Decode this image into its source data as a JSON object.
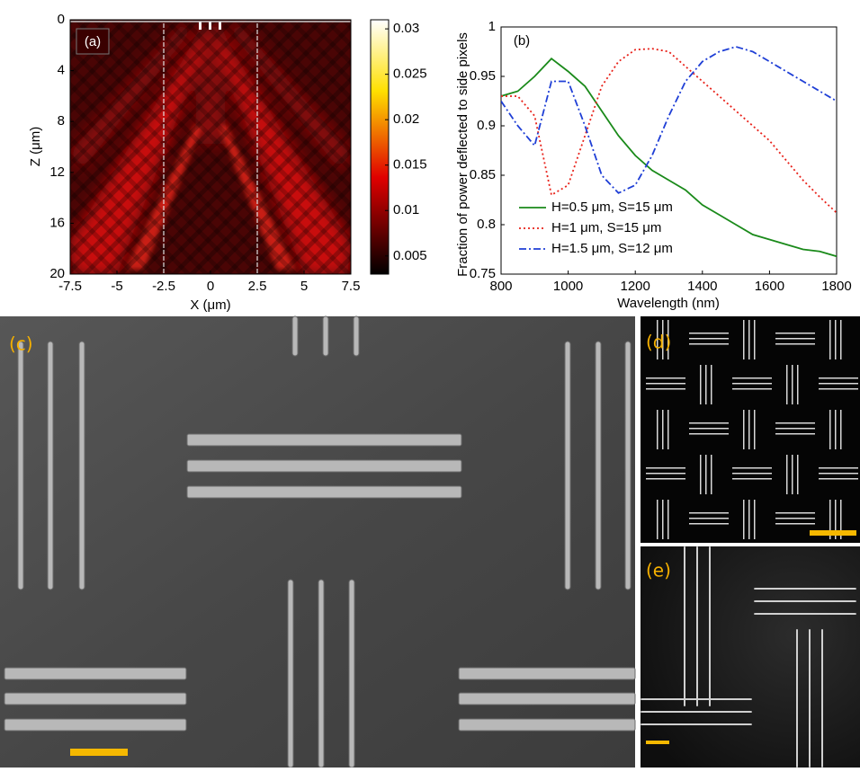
{
  "chart_data": [
    {
      "type": "heatmap",
      "panel_label": "(a)",
      "xlabel": "X (μm)",
      "ylabel": "Z (μm)",
      "xlim": [
        -7.5,
        7.5
      ],
      "xticks": [
        -7.5,
        -5,
        -2.5,
        0,
        2.5,
        5,
        7.5
      ],
      "ylim": [
        20,
        0
      ],
      "yticks": [
        0,
        4,
        8,
        12,
        16,
        20
      ],
      "guides_x": [
        -2.5,
        2.5
      ],
      "colorbar": {
        "colormap": "hot",
        "lim": [
          0.003,
          0.031
        ],
        "ticks": [
          0.005,
          0.01,
          0.015,
          0.02,
          0.025,
          0.03
        ]
      }
    },
    {
      "type": "line",
      "panel_label": "(b)",
      "xlabel": "Wavelength (nm)",
      "ylabel": "Fraction of power deflected to side pixels",
      "xlim": [
        800,
        1800
      ],
      "xticks": [
        800,
        1000,
        1200,
        1400,
        1600,
        1800
      ],
      "ylim": [
        0.75,
        1
      ],
      "yticks": [
        0.75,
        0.8,
        0.85,
        0.9,
        0.95,
        1
      ],
      "legend": "lower left",
      "x": [
        800,
        850,
        900,
        950,
        1000,
        1050,
        1100,
        1150,
        1200,
        1250,
        1300,
        1350,
        1400,
        1450,
        1500,
        1550,
        1600,
        1650,
        1700,
        1750,
        1800
      ],
      "series": [
        {
          "name": "H=0.5 μm, S=15 μm",
          "color": "#1a8a1a",
          "style": "solid",
          "values": [
            0.93,
            0.935,
            0.95,
            0.968,
            0.955,
            0.94,
            0.915,
            0.89,
            0.87,
            0.855,
            0.845,
            0.835,
            0.82,
            0.81,
            0.8,
            0.79,
            0.785,
            0.78,
            0.775,
            0.773,
            0.768
          ]
        },
        {
          "name": "H=1 μm, S=15 μm",
          "color": "#e8221a",
          "style": "dotted",
          "values": [
            0.93,
            0.93,
            0.91,
            0.83,
            0.84,
            0.89,
            0.94,
            0.965,
            0.977,
            0.978,
            0.975,
            0.96,
            0.945,
            0.93,
            0.915,
            0.9,
            0.885,
            0.865,
            0.845,
            0.828,
            0.812
          ]
        },
        {
          "name": "H=1.5 μm, S=12 μm",
          "color": "#1f3fd6",
          "style": "dashdot",
          "values": [
            0.925,
            0.9,
            0.88,
            0.945,
            0.945,
            0.9,
            0.85,
            0.832,
            0.84,
            0.87,
            0.91,
            0.945,
            0.965,
            0.975,
            0.98,
            0.975,
            0.965,
            0.955,
            0.945,
            0.935,
            0.925
          ]
        }
      ]
    }
  ],
  "panels": [
    {
      "label": "(c)"
    },
    {
      "label": "(d)"
    },
    {
      "label": "(e)"
    }
  ]
}
